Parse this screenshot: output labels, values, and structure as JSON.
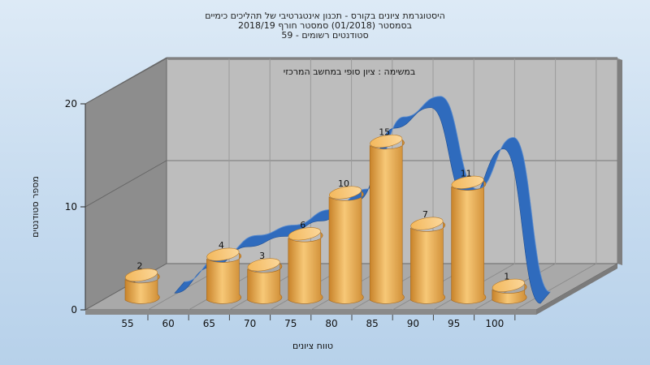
{
  "chart_data": {
    "type": "bar",
    "title": [
      "היסטוגרמת ציונים בקורס - תכנון אינטגרטיבי של תהליכים כימיים",
      "בסמסטר  (01/2018)  סמסטר חורף 2018/19",
      "סטודנטים רשומים - 59"
    ],
    "subtitle": "במשימה : ציון סופי במחשב המרכזי",
    "xlabel": "טווח ציונים",
    "ylabel": "מספר סטודנטים",
    "categories": [
      "55",
      "60",
      "65",
      "70",
      "75",
      "80",
      "85",
      "90",
      "95",
      "100"
    ],
    "values": [
      2,
      0,
      4,
      3,
      6,
      10,
      15,
      7,
      11,
      1
    ],
    "data_labels": [
      "2",
      "",
      "4",
      "3",
      "6",
      "10",
      "15",
      "7",
      "11",
      "1"
    ],
    "ylim": [
      0,
      20
    ],
    "yticks": [
      0,
      10,
      20
    ],
    "ytick_labels": [
      "0",
      "10",
      "20"
    ],
    "curve_values": [
      0,
      2.5,
      4.5,
      5.5,
      7,
      9,
      16,
      18,
      9,
      14,
      -1
    ],
    "grid": true,
    "bar_color": "#e8a640",
    "curve_color": "#2f6bbd",
    "wall_color": "#b9b9b9",
    "side_wall_color": "#8a8a8a",
    "floor_color": "#a8a8a8"
  }
}
